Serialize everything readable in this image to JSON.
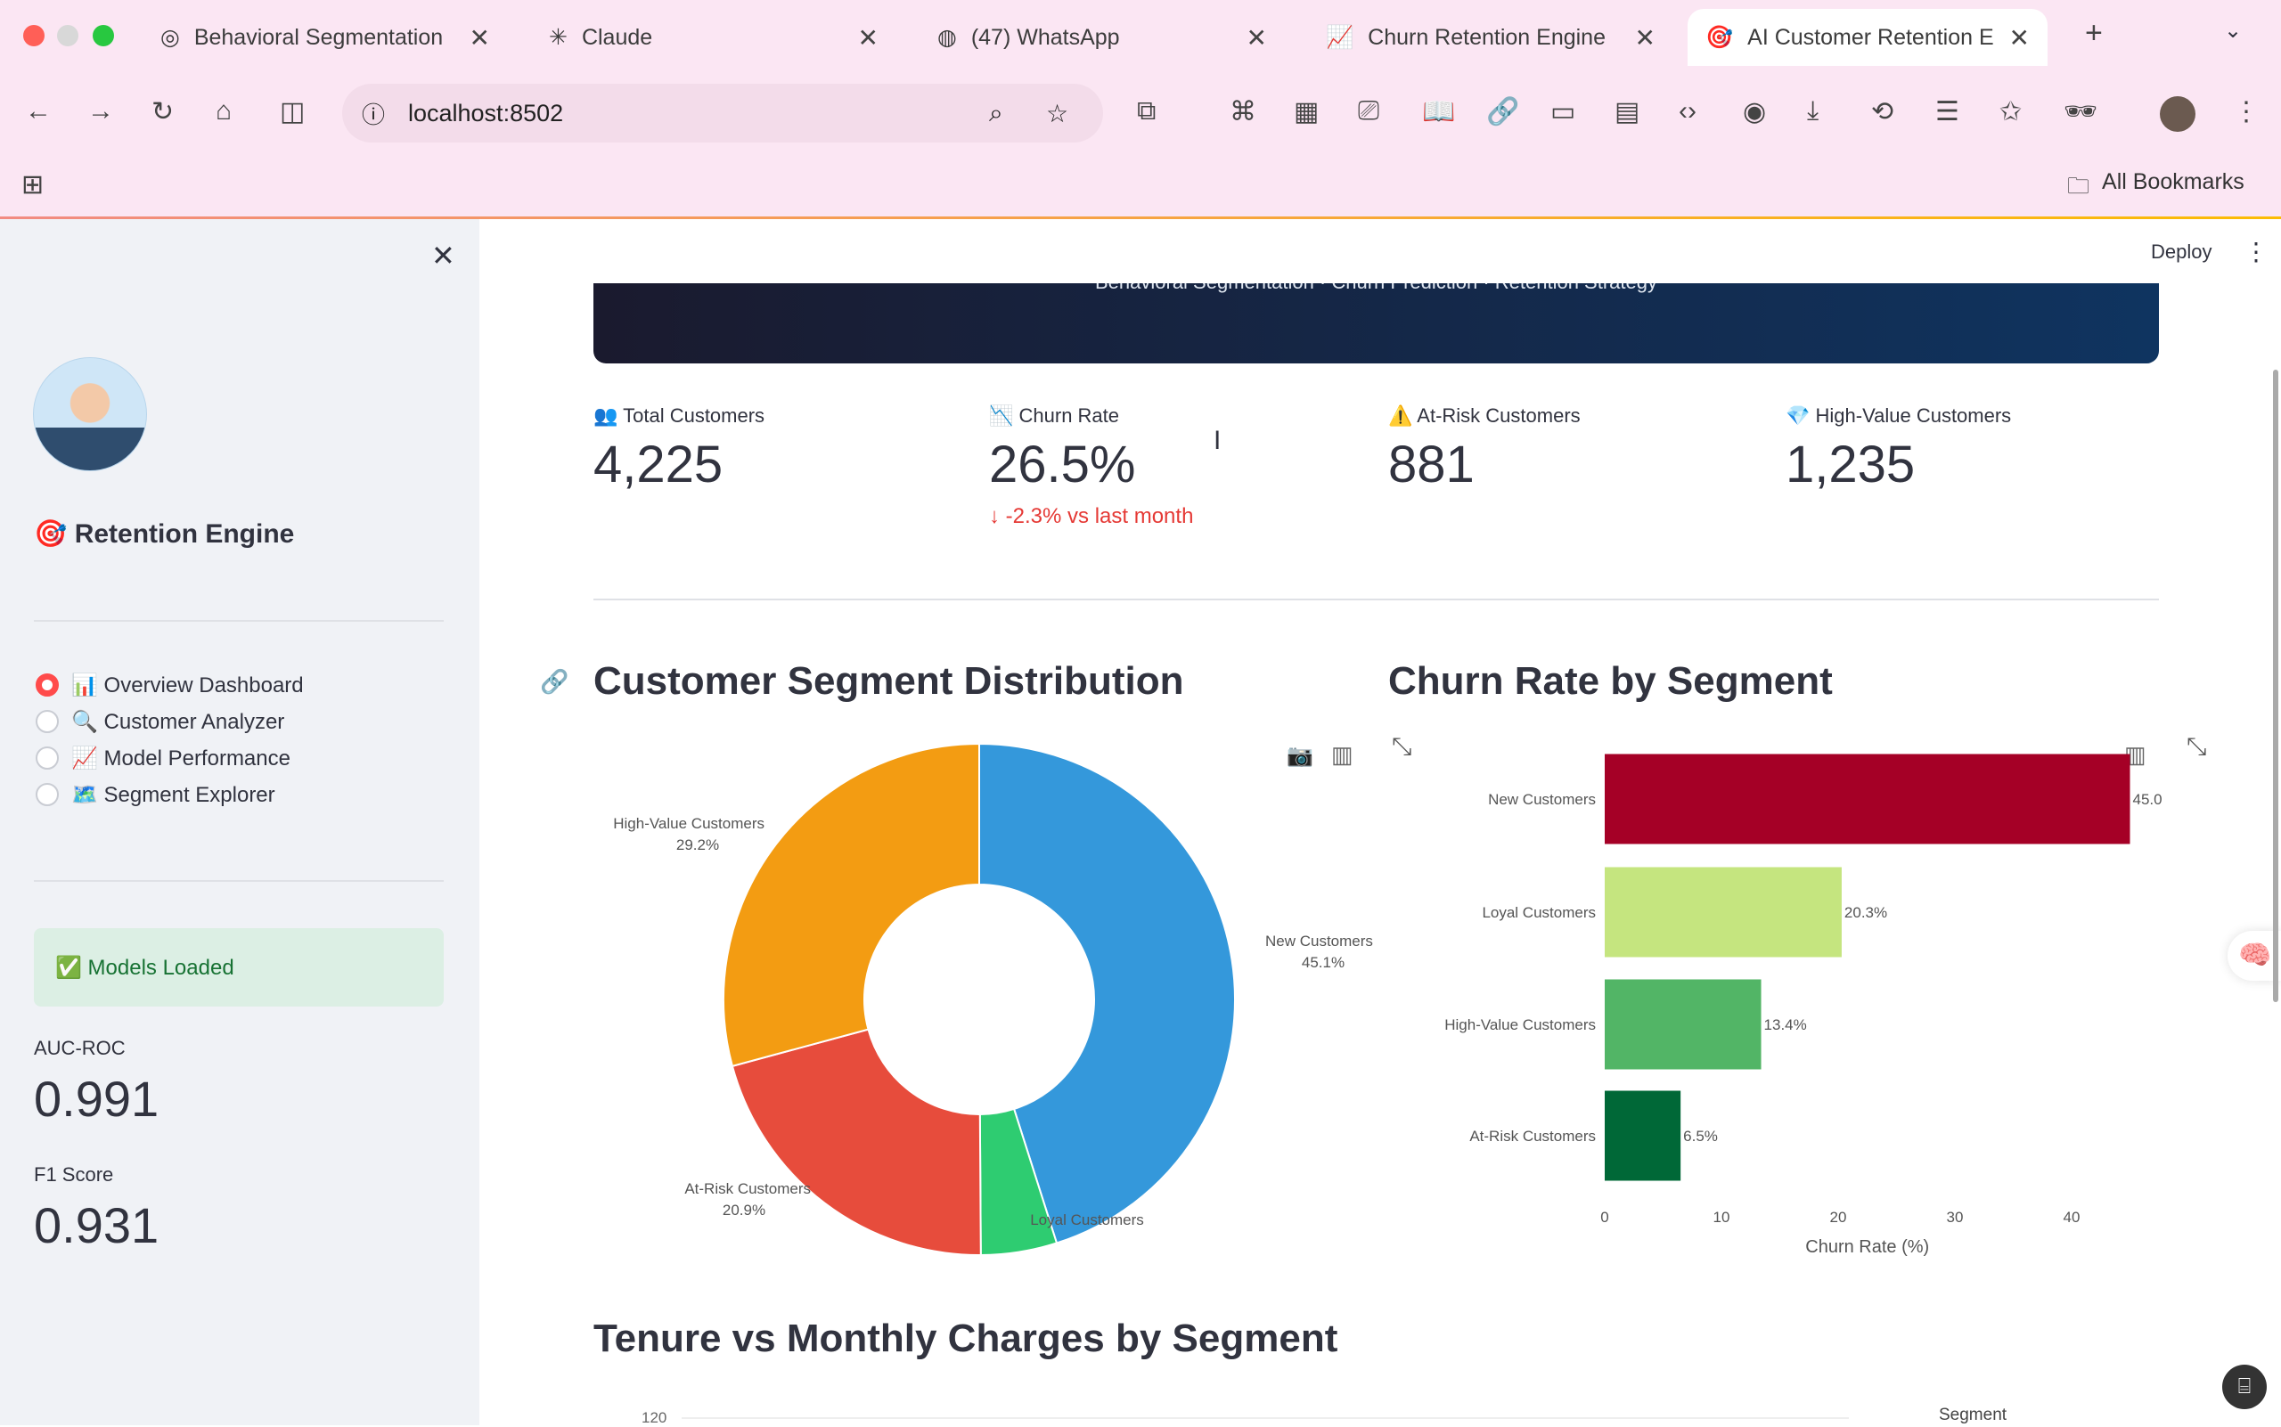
{
  "browser": {
    "tabs": [
      {
        "title": "Behavioral Segmentation",
        "icon": "openai-icon"
      },
      {
        "title": "Claude",
        "icon": "claude-icon"
      },
      {
        "title": "(47) WhatsApp",
        "icon": "whatsapp-icon",
        "badge": "47"
      },
      {
        "title": "Churn Retention Engine",
        "icon": "chart-icon"
      },
      {
        "title": "AI Customer Retention En",
        "icon": "target-icon",
        "active": true
      }
    ],
    "url": "localhost:8502",
    "bookmarks_label": "All Bookmarks"
  },
  "app": {
    "deploy_label": "Deploy",
    "sidebar": {
      "title": "🎯 Retention Engine",
      "nav": [
        {
          "label": "📊 Overview Dashboard",
          "selected": true
        },
        {
          "label": "🔍 Customer Analyzer",
          "selected": false
        },
        {
          "label": "📈 Model Performance",
          "selected": false
        },
        {
          "label": "🗺️ Segment Explorer",
          "selected": false
        }
      ],
      "status": "✅ Models Loaded",
      "metrics": [
        {
          "label": "AUC-ROC",
          "value": "0.991"
        },
        {
          "label": "F1 Score",
          "value": "0.931"
        }
      ]
    },
    "banner_subtitle": "Behavioral Segmentation · Churn Prediction · Retention Strategy",
    "kpis": [
      {
        "label": "👥 Total Customers",
        "value": "4,225"
      },
      {
        "label": "📉 Churn Rate",
        "value": "26.5%",
        "delta": "-2.3% vs last month"
      },
      {
        "label": "⚠️ At-Risk Customers",
        "value": "881"
      },
      {
        "label": "💎 High-Value Customers",
        "value": "1,235"
      }
    ],
    "section_pie": "Customer Segment Distribution",
    "section_bar": "Churn Rate by Segment",
    "section_scatter": "Tenure vs Monthly Charges by Segment",
    "scatter_tick_top": "120",
    "scatter_legend_title": "Segment"
  },
  "chart_data": [
    {
      "type": "pie",
      "hole": true,
      "labels": [
        "New Customers",
        "Loyal Customers",
        "At-Risk Customers",
        "High-Value Customers"
      ],
      "values": [
        45.1,
        4.8,
        20.9,
        29.2
      ],
      "display": [
        "New Customers\n45.1%",
        "Loyal Customers",
        "At-Risk Customers\n20.9%",
        "High-Value Customers\n29.2%"
      ],
      "colors": [
        "#3498db",
        "#2ecc71",
        "#e74c3c",
        "#f39c12"
      ]
    },
    {
      "type": "bar",
      "orientation": "horizontal",
      "categories": [
        "New Customers",
        "Loyal Customers",
        "High-Value Customers",
        "At-Risk Customers"
      ],
      "values": [
        45.0,
        20.3,
        13.4,
        6.5
      ],
      "data_labels": [
        "45.0",
        "20.3%",
        "13.4%",
        "6.5%"
      ],
      "colors": [
        "#a50026",
        "#c5e57f",
        "#52b566",
        "#006837"
      ],
      "xlabel": "Churn Rate (%)",
      "xticks": [
        "0",
        "10",
        "20",
        "30",
        "40"
      ],
      "xlim": [
        0,
        45
      ]
    }
  ]
}
